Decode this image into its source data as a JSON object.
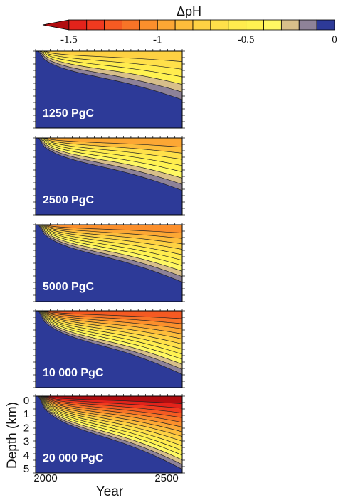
{
  "colorbar": {
    "title": "ΔpH",
    "ticks": [
      "-1.5",
      "-1",
      "-0.5",
      "0"
    ],
    "levels": [
      {
        "from": -1.6,
        "to": -1.5,
        "color": "#b10d10"
      },
      {
        "from": -1.5,
        "to": -1.4,
        "color": "#e3231b"
      },
      {
        "from": -1.4,
        "to": -1.3,
        "color": "#ef3a1f"
      },
      {
        "from": -1.3,
        "to": -1.2,
        "color": "#f55a22"
      },
      {
        "from": -1.2,
        "to": -1.1,
        "color": "#f87427"
      },
      {
        "from": -1.1,
        "to": -1.0,
        "color": "#fb8f2c"
      },
      {
        "from": -1.0,
        "to": -0.9,
        "color": "#fca734"
      },
      {
        "from": -0.9,
        "to": -0.8,
        "color": "#fdbd3b"
      },
      {
        "from": -0.8,
        "to": -0.7,
        "color": "#fed143"
      },
      {
        "from": -0.7,
        "to": -0.6,
        "color": "#ffe04a"
      },
      {
        "from": -0.6,
        "to": -0.5,
        "color": "#ffec4e"
      },
      {
        "from": -0.5,
        "to": -0.4,
        "color": "#fff251"
      },
      {
        "from": -0.4,
        "to": -0.3,
        "color": "#fff863"
      },
      {
        "from": -0.3,
        "to": -0.2,
        "color": "#d8bf8a"
      },
      {
        "from": -0.2,
        "to": -0.1,
        "color": "#8e8298"
      },
      {
        "from": -0.1,
        "to": 0.0,
        "color": "#2d3a98"
      }
    ]
  },
  "chart_data": [
    {
      "type": "heatmap",
      "label": "1250 PgC",
      "intensity": 0.22
    },
    {
      "type": "heatmap",
      "label": "2500 PgC",
      "intensity": 0.35
    },
    {
      "type": "heatmap",
      "label": "5000 PgC",
      "intensity": 0.5
    },
    {
      "type": "heatmap",
      "label": "10 000 PgC",
      "intensity": 0.7
    },
    {
      "type": "heatmap",
      "label": "20 000 PgC",
      "intensity": 1.0,
      "xlabel": "Year",
      "ylabel": "Depth (km)",
      "x_ticks": [
        "2000",
        "2500"
      ],
      "xlim": [
        2000,
        2500
      ],
      "y_ticks": [
        "0",
        "1",
        "2",
        "3",
        "4",
        "5"
      ],
      "ylim": [
        0,
        5
      ]
    }
  ]
}
